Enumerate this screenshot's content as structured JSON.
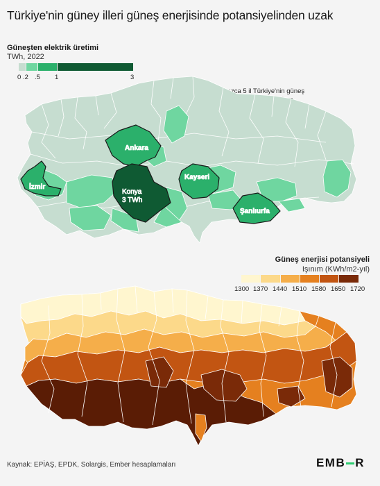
{
  "title": "Türkiye'nin güney illeri güneş enerjisinde potansiyelinden uzak",
  "map1": {
    "legend_title": "Güneşten elektrik üretimi",
    "legend_subtitle": "TWh, 2022",
    "legend_ticks": [
      "0",
      ".2",
      ".5",
      "1",
      "3"
    ],
    "legend_colors": [
      "#c6ddd0",
      "#6fd6a0",
      "#2bb06b",
      "#0f5a33"
    ],
    "highlight_note": "Yalnızca 5 il Türkiye'nin güneş enerjisinin %38'ini üretiyor",
    "provinces": [
      {
        "name": "Ankara",
        "value_label": ""
      },
      {
        "name": "İzmir",
        "value_label": ""
      },
      {
        "name": "Konya",
        "value_label": "3 TWh"
      },
      {
        "name": "Kayseri",
        "value_label": ""
      },
      {
        "name": "Şanlıurfa",
        "value_label": ""
      }
    ]
  },
  "map2": {
    "legend_title": "Güneş enerjisi potansiyeli",
    "legend_subtitle": "Işınım (KWh/m2-yıl)",
    "legend_ticks": [
      "1300",
      "1370",
      "1440",
      "1510",
      "1580",
      "1650",
      "1720"
    ],
    "legend_colors": [
      "#fff6cf",
      "#fcd98a",
      "#f5ae4a",
      "#e5801f",
      "#c25512",
      "#8a330a",
      "#5a1c05"
    ]
  },
  "source": "Kaynak: EPİAŞ, EPDK, Solargis, Ember hesaplamaları",
  "logo": {
    "left": "EMB",
    "right": "R"
  }
}
